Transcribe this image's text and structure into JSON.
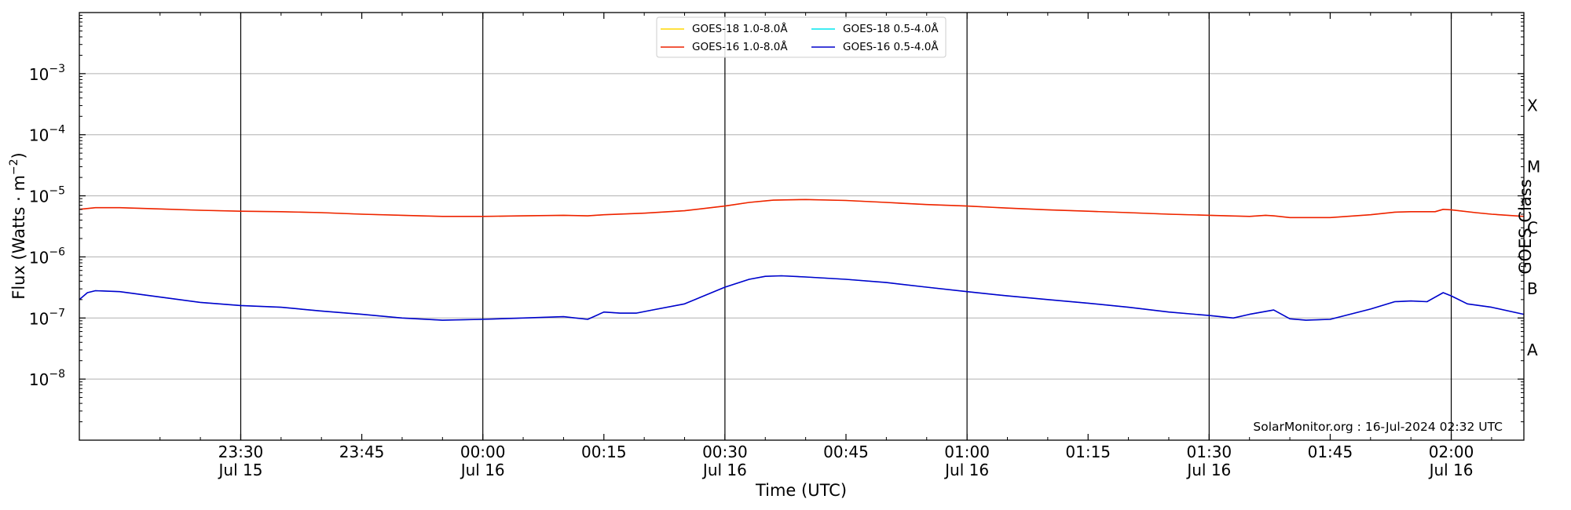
{
  "chart_data": {
    "type": "line",
    "xlabel": "Time (UTC)",
    "ylabel": "Flux (Watts · m",
    "ylabel_sup": "−2",
    "ylabel_close": ")",
    "y2label": "GOES Class",
    "yscale": "log",
    "ylim": [
      1e-09,
      0.01
    ],
    "xlim": [
      "2024-07-15T23:10",
      "2024-07-16T02:09"
    ],
    "x_ticks": [
      {
        "time": "2024-07-15T23:30",
        "label": "23:30",
        "sublabel": "Jul 15"
      },
      {
        "time": "2024-07-15T23:45",
        "label": "23:45",
        "sublabel": ""
      },
      {
        "time": "2024-07-16T00:00",
        "label": "00:00",
        "sublabel": "Jul 16"
      },
      {
        "time": "2024-07-16T00:15",
        "label": "00:15",
        "sublabel": ""
      },
      {
        "time": "2024-07-16T00:30",
        "label": "00:30",
        "sublabel": "Jul 16"
      },
      {
        "time": "2024-07-16T00:45",
        "label": "00:45",
        "sublabel": ""
      },
      {
        "time": "2024-07-16T01:00",
        "label": "01:00",
        "sublabel": "Jul 16"
      },
      {
        "time": "2024-07-16T01:15",
        "label": "01:15",
        "sublabel": ""
      },
      {
        "time": "2024-07-16T01:30",
        "label": "01:30",
        "sublabel": "Jul 16"
      },
      {
        "time": "2024-07-16T01:45",
        "label": "01:45",
        "sublabel": ""
      },
      {
        "time": "2024-07-16T02:00",
        "label": "02:00",
        "sublabel": "Jul 16"
      }
    ],
    "y_ticks": [
      {
        "value": 1e-08,
        "base": "10",
        "exp": "−8"
      },
      {
        "value": 1e-07,
        "base": "10",
        "exp": "−7"
      },
      {
        "value": 1e-06,
        "base": "10",
        "exp": "−6"
      },
      {
        "value": 1e-05,
        "base": "10",
        "exp": "−5"
      },
      {
        "value": 0.0001,
        "base": "10",
        "exp": "−4"
      },
      {
        "value": 0.001,
        "base": "10",
        "exp": "−3"
      }
    ],
    "goes_classes": [
      {
        "label": "A",
        "value": 3e-08
      },
      {
        "label": "B",
        "value": 3e-07
      },
      {
        "label": "C",
        "value": 3e-06
      },
      {
        "label": "M",
        "value": 3e-05
      },
      {
        "label": "X",
        "value": 0.0003
      }
    ],
    "grid": "horizontal at decades; vertical black lines at labeled half-hours",
    "legend_position": "top-center",
    "series": [
      {
        "name": "GOES-18 1.0-8.0Å",
        "color": "#ffd700",
        "ref": "GOES-16 1.0-8.0Å"
      },
      {
        "name": "GOES-18 0.5-4.0Å",
        "color": "#00e5ee",
        "ref": "GOES-16 0.5-4.0Å"
      },
      {
        "name": "GOES-16 1.0-8.0Å",
        "color": "#ee2200",
        "x": [
          "2024-07-15T23:10",
          "2024-07-15T23:12",
          "2024-07-15T23:15",
          "2024-07-15T23:20",
          "2024-07-15T23:25",
          "2024-07-15T23:30",
          "2024-07-15T23:35",
          "2024-07-15T23:40",
          "2024-07-15T23:45",
          "2024-07-15T23:50",
          "2024-07-15T23:55",
          "2024-07-16T00:00",
          "2024-07-16T00:05",
          "2024-07-16T00:10",
          "2024-07-16T00:13",
          "2024-07-16T00:15",
          "2024-07-16T00:20",
          "2024-07-16T00:25",
          "2024-07-16T00:30",
          "2024-07-16T00:33",
          "2024-07-16T00:36",
          "2024-07-16T00:40",
          "2024-07-16T00:45",
          "2024-07-16T00:50",
          "2024-07-16T00:55",
          "2024-07-16T01:00",
          "2024-07-16T01:05",
          "2024-07-16T01:10",
          "2024-07-16T01:15",
          "2024-07-16T01:20",
          "2024-07-16T01:25",
          "2024-07-16T01:30",
          "2024-07-16T01:35",
          "2024-07-16T01:37",
          "2024-07-16T01:38",
          "2024-07-16T01:40",
          "2024-07-16T01:45",
          "2024-07-16T01:50",
          "2024-07-16T01:53",
          "2024-07-16T01:55",
          "2024-07-16T01:58",
          "2024-07-16T01:59",
          "2024-07-16T02:00",
          "2024-07-16T02:03",
          "2024-07-16T02:05",
          "2024-07-16T02:09"
        ],
        "values": [
          6e-06,
          6.4e-06,
          6.4e-06,
          6.1e-06,
          5.8e-06,
          5.6e-06,
          5.5e-06,
          5.3e-06,
          5e-06,
          4.8e-06,
          4.6e-06,
          4.6e-06,
          4.7e-06,
          4.8e-06,
          4.7e-06,
          4.9e-06,
          5.2e-06,
          5.7e-06,
          6.8e-06,
          7.8e-06,
          8.5e-06,
          8.7e-06,
          8.4e-06,
          7.8e-06,
          7.2e-06,
          6.8e-06,
          6.3e-06,
          5.9e-06,
          5.6e-06,
          5.3e-06,
          5e-06,
          4.8e-06,
          4.6e-06,
          4.8e-06,
          4.7e-06,
          4.4e-06,
          4.4e-06,
          4.9e-06,
          5.4e-06,
          5.5e-06,
          5.5e-06,
          6e-06,
          5.9e-06,
          5.3e-06,
          5e-06,
          4.6e-06
        ]
      },
      {
        "name": "GOES-16 0.5-4.0Å",
        "color": "#0000cc",
        "x": [
          "2024-07-15T23:10",
          "2024-07-15T23:11",
          "2024-07-15T23:12",
          "2024-07-15T23:15",
          "2024-07-15T23:20",
          "2024-07-15T23:25",
          "2024-07-15T23:30",
          "2024-07-15T23:35",
          "2024-07-15T23:40",
          "2024-07-15T23:45",
          "2024-07-15T23:50",
          "2024-07-15T23:55",
          "2024-07-16T00:00",
          "2024-07-16T00:05",
          "2024-07-16T00:10",
          "2024-07-16T00:13",
          "2024-07-16T00:15",
          "2024-07-16T00:17",
          "2024-07-16T00:19",
          "2024-07-16T00:21",
          "2024-07-16T00:25",
          "2024-07-16T00:30",
          "2024-07-16T00:33",
          "2024-07-16T00:35",
          "2024-07-16T00:37",
          "2024-07-16T00:40",
          "2024-07-16T00:45",
          "2024-07-16T00:50",
          "2024-07-16T00:55",
          "2024-07-16T01:00",
          "2024-07-16T01:05",
          "2024-07-16T01:10",
          "2024-07-16T01:15",
          "2024-07-16T01:20",
          "2024-07-16T01:25",
          "2024-07-16T01:30",
          "2024-07-16T01:33",
          "2024-07-16T01:35",
          "2024-07-16T01:38",
          "2024-07-16T01:40",
          "2024-07-16T01:42",
          "2024-07-16T01:45",
          "2024-07-16T01:50",
          "2024-07-16T01:53",
          "2024-07-16T01:55",
          "2024-07-16T01:57",
          "2024-07-16T01:59",
          "2024-07-16T02:00",
          "2024-07-16T02:02",
          "2024-07-16T02:05",
          "2024-07-16T02:09"
        ],
        "values": [
          2e-07,
          2.6e-07,
          2.8e-07,
          2.7e-07,
          2.2e-07,
          1.8e-07,
          1.6e-07,
          1.5e-07,
          1.3e-07,
          1.15e-07,
          1e-07,
          9.2e-08,
          9.5e-08,
          1e-07,
          1.05e-07,
          9.5e-08,
          1.25e-07,
          1.2e-07,
          1.2e-07,
          1.35e-07,
          1.7e-07,
          3.2e-07,
          4.3e-07,
          4.8e-07,
          4.9e-07,
          4.7e-07,
          4.3e-07,
          3.8e-07,
          3.2e-07,
          2.7e-07,
          2.3e-07,
          2e-07,
          1.75e-07,
          1.5e-07,
          1.25e-07,
          1.1e-07,
          1e-07,
          1.15e-07,
          1.35e-07,
          9.7e-08,
          9.2e-08,
          9.5e-08,
          1.4e-07,
          1.85e-07,
          1.9e-07,
          1.85e-07,
          2.6e-07,
          2.3e-07,
          1.7e-07,
          1.5e-07,
          1.15e-07
        ]
      }
    ],
    "credit": "SolarMonitor.org : 16-Jul-2024 02:32 UTC"
  }
}
